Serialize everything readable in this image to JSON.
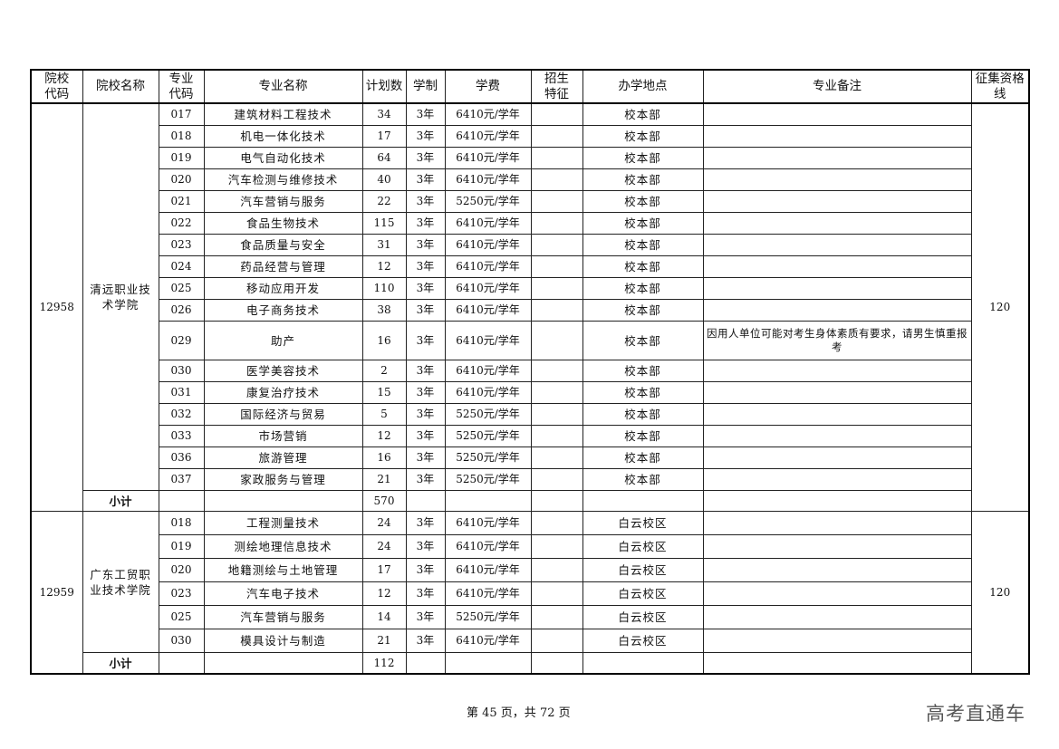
{
  "headers": [
    "院校代码",
    "院校名称",
    "专业代码",
    "专业名称",
    "计划数",
    "学制",
    "学费",
    "招生特征",
    "办学地点",
    "专业备注",
    "征集资格线"
  ],
  "groups": [
    {
      "school_code": "12958",
      "school_name": "清远职业技术学院",
      "qualifying_line": "120",
      "subtotal_label": "小计",
      "subtotal_plan": "570",
      "rows": [
        {
          "code": "017",
          "major": "建筑材料工程技术",
          "plan": "34",
          "years": "3年",
          "fee": "6410元/学年",
          "feature": "",
          "location": "校本部",
          "note": ""
        },
        {
          "code": "018",
          "major": "机电一体化技术",
          "plan": "17",
          "years": "3年",
          "fee": "6410元/学年",
          "feature": "",
          "location": "校本部",
          "note": ""
        },
        {
          "code": "019",
          "major": "电气自动化技术",
          "plan": "64",
          "years": "3年",
          "fee": "6410元/学年",
          "feature": "",
          "location": "校本部",
          "note": ""
        },
        {
          "code": "020",
          "major": "汽车检测与维修技术",
          "plan": "40",
          "years": "3年",
          "fee": "6410元/学年",
          "feature": "",
          "location": "校本部",
          "note": ""
        },
        {
          "code": "021",
          "major": "汽车营销与服务",
          "plan": "22",
          "years": "3年",
          "fee": "5250元/学年",
          "feature": "",
          "location": "校本部",
          "note": ""
        },
        {
          "code": "022",
          "major": "食品生物技术",
          "plan": "115",
          "years": "3年",
          "fee": "6410元/学年",
          "feature": "",
          "location": "校本部",
          "note": ""
        },
        {
          "code": "023",
          "major": "食品质量与安全",
          "plan": "31",
          "years": "3年",
          "fee": "6410元/学年",
          "feature": "",
          "location": "校本部",
          "note": ""
        },
        {
          "code": "024",
          "major": "药品经营与管理",
          "plan": "12",
          "years": "3年",
          "fee": "6410元/学年",
          "feature": "",
          "location": "校本部",
          "note": ""
        },
        {
          "code": "025",
          "major": "移动应用开发",
          "plan": "110",
          "years": "3年",
          "fee": "6410元/学年",
          "feature": "",
          "location": "校本部",
          "note": ""
        },
        {
          "code": "026",
          "major": "电子商务技术",
          "plan": "38",
          "years": "3年",
          "fee": "6410元/学年",
          "feature": "",
          "location": "校本部",
          "note": ""
        },
        {
          "code": "029",
          "major": "助产",
          "plan": "16",
          "years": "3年",
          "fee": "6410元/学年",
          "feature": "",
          "location": "校本部",
          "note": "因用人单位可能对考生身体素质有要求，请男生慎重报考"
        },
        {
          "code": "030",
          "major": "医学美容技术",
          "plan": "2",
          "years": "3年",
          "fee": "6410元/学年",
          "feature": "",
          "location": "校本部",
          "note": ""
        },
        {
          "code": "031",
          "major": "康复治疗技术",
          "plan": "15",
          "years": "3年",
          "fee": "6410元/学年",
          "feature": "",
          "location": "校本部",
          "note": ""
        },
        {
          "code": "032",
          "major": "国际经济与贸易",
          "plan": "5",
          "years": "3年",
          "fee": "5250元/学年",
          "feature": "",
          "location": "校本部",
          "note": ""
        },
        {
          "code": "033",
          "major": "市场营销",
          "plan": "12",
          "years": "3年",
          "fee": "5250元/学年",
          "feature": "",
          "location": "校本部",
          "note": ""
        },
        {
          "code": "036",
          "major": "旅游管理",
          "plan": "16",
          "years": "3年",
          "fee": "5250元/学年",
          "feature": "",
          "location": "校本部",
          "note": ""
        },
        {
          "code": "037",
          "major": "家政服务与管理",
          "plan": "21",
          "years": "3年",
          "fee": "5250元/学年",
          "feature": "",
          "location": "校本部",
          "note": ""
        }
      ]
    },
    {
      "school_code": "12959",
      "school_name": "广东工贸职业技术学院",
      "qualifying_line": "120",
      "subtotal_label": "小计",
      "subtotal_plan": "112",
      "rows": [
        {
          "code": "018",
          "major": "工程测量技术",
          "plan": "24",
          "years": "3年",
          "fee": "6410元/学年",
          "feature": "",
          "location": "白云校区",
          "note": ""
        },
        {
          "code": "019",
          "major": "测绘地理信息技术",
          "plan": "24",
          "years": "3年",
          "fee": "6410元/学年",
          "feature": "",
          "location": "白云校区",
          "note": ""
        },
        {
          "code": "020",
          "major": "地籍测绘与土地管理",
          "plan": "17",
          "years": "3年",
          "fee": "6410元/学年",
          "feature": "",
          "location": "白云校区",
          "note": ""
        },
        {
          "code": "023",
          "major": "汽车电子技术",
          "plan": "12",
          "years": "3年",
          "fee": "6410元/学年",
          "feature": "",
          "location": "白云校区",
          "note": ""
        },
        {
          "code": "025",
          "major": "汽车营销与服务",
          "plan": "14",
          "years": "3年",
          "fee": "5250元/学年",
          "feature": "",
          "location": "白云校区",
          "note": ""
        },
        {
          "code": "030",
          "major": "模具设计与制造",
          "plan": "21",
          "years": "3年",
          "fee": "6410元/学年",
          "feature": "",
          "location": "白云校区",
          "note": ""
        }
      ]
    }
  ],
  "footer": {
    "page_text": "第 45 页，共 72 页"
  },
  "watermark": "高考直通车"
}
